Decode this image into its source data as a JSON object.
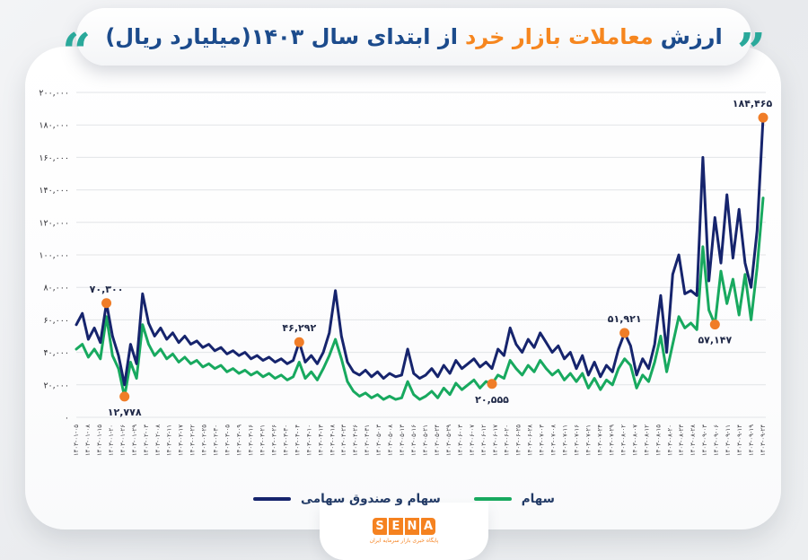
{
  "title": {
    "quote_left": "“",
    "quote_right": "”",
    "lead": "ارزش",
    "highlight": "معاملات بازار خرد",
    "tail": "از ابتدای سال ۱۴۰۳(میلیارد ریال)"
  },
  "colors": {
    "title_blue": "#1c4b8c",
    "title_orange": "#f6861f",
    "quote_teal": "#2aa99b",
    "navy_series": "#16246d",
    "green_series": "#18a95f",
    "annotation_dot": "#f07d28",
    "annotation_text": "#1f2847",
    "gridline": "#e2e4e7",
    "logo_orange": "#f58220"
  },
  "chart_data": {
    "type": "line",
    "title": "ارزش معاملات بازار خرد از ابتدای سال ۱۴۰۳(میلیارد ریال)",
    "unit": "میلیارد ریال",
    "ylim": [
      0,
      200000
    ],
    "grid": true,
    "legend_position": "bottom",
    "y_ticks": [
      {
        "label": "۲۰۰,۰۰۰",
        "value": 200000
      },
      {
        "label": "۱۸۰,۰۰۰",
        "value": 180000
      },
      {
        "label": "۱۶۰,۰۰۰",
        "value": 160000
      },
      {
        "label": "۱۴۰,۰۰۰",
        "value": 140000
      },
      {
        "label": "۱۲۰,۰۰۰",
        "value": 120000
      },
      {
        "label": "۱۰۰,۰۰۰",
        "value": 100000
      },
      {
        "label": "۸۰,۰۰۰",
        "value": 80000
      },
      {
        "label": "۶۰,۰۰۰",
        "value": 60000
      },
      {
        "label": "۴۰,۰۰۰",
        "value": 40000
      },
      {
        "label": "۲۰,۰۰۰",
        "value": 20000
      },
      {
        "label": "۰",
        "value": 0
      }
    ],
    "x_labels": [
      "۱۴۰۳-۰۱-۰۵",
      "۱۴۰۳-۰۱-۰۸",
      "۱۴۰۳-۰۱-۱۵",
      "۱۴۰۳-۰۱-۲۰",
      "۱۴۰۳-۰۱-۲۶",
      "۱۴۰۳-۰۱-۲۹",
      "۱۴۰۳-۰۲-۰۳",
      "۱۴۰۳-۰۲-۰۸",
      "۱۴۰۳-۰۲-۱۱",
      "۱۴۰۳-۰۲-۱۷",
      "۱۴۰۳-۰۲-۲۲",
      "۱۴۰۳-۰۲-۲۵",
      "۱۴۰۳-۰۲-۳۰",
      "۱۴۰۳-۰۳-۰۵",
      "۱۴۰۳-۰۳-۰۹",
      "۱۴۰۳-۰۳-۱۶",
      "۱۴۰۳-۰۳-۲۱",
      "۱۴۰۳-۰۳-۲۶",
      "۱۴۰۳-۰۳-۳۰",
      "۱۴۰۳-۰۴-۰۴",
      "۱۴۰۳-۰۴-۱۰",
      "۱۴۰۳-۰۴-۱۳",
      "۱۴۰۳-۰۴-۱۸",
      "۱۴۰۳-۰۴-۲۳",
      "۱۴۰۳-۰۴-۲۶",
      "۱۴۰۳-۰۴-۳۱",
      "۱۴۰۳-۰۵-۰۳",
      "۱۴۰۳-۰۵-۰۸",
      "۱۴۰۳-۰۵-۱۳",
      "۱۴۰۳-۰۵-۱۶",
      "۱۴۰۳-۰۵-۲۱",
      "۱۴۰۳-۰۵-۲۴",
      "۱۴۰۳-۰۵-۲۹",
      "۱۴۰۳-۰۶-۰۳",
      "۱۴۰۳-۰۶-۰۷",
      "۱۴۰۳-۰۶-۱۲",
      "۱۴۰۳-۰۶-۱۷",
      "۱۴۰۳-۰۶-۲۰",
      "۱۴۰۳-۰۶-۲۵",
      "۱۴۰۳-۰۶-۲۸",
      "۱۴۰۳-۰۷-۰۳",
      "۱۴۰۳-۰۷-۰۸",
      "۱۴۰۳-۰۷-۱۱",
      "۱۴۰۳-۰۷-۱۶",
      "۱۴۰۳-۰۷-۲۱",
      "۱۴۰۳-۰۷-۲۴",
      "۱۴۰۳-۰۷-۲۹",
      "۱۴۰۳-۰۸-۰۲",
      "۱۴۰۳-۰۸-۰۷",
      "۱۴۰۳-۰۸-۱۲",
      "۱۴۰۳-۰۸-۱۵",
      "۱۴۰۳-۰۸-۲۰",
      "۱۴۰۳-۰۸-۲۳",
      "۱۴۰۳-۰۸-۲۸",
      "۱۴۰۳-۰۹-۰۳",
      "۱۴۰۳-۰۹-۰۶",
      "۱۴۰۳-۰۹-۱۱",
      "۱۴۰۳-۰۹-۱۴",
      "۱۴۰۳-۰۹-۱۹",
      "۱۴۰۳-۰۹-۲۴"
    ],
    "series": [
      {
        "name": "سهام و صندوق سهامی",
        "color": "#16246d",
        "values": [
          57000,
          64000,
          48000,
          55000,
          46000,
          70300,
          50000,
          38000,
          20000,
          45000,
          33000,
          76000,
          58000,
          50000,
          55000,
          48000,
          52000,
          46000,
          50000,
          45000,
          47000,
          43000,
          45000,
          41000,
          43000,
          39000,
          41000,
          38000,
          40000,
          36000,
          38000,
          35000,
          37000,
          34000,
          36000,
          33000,
          35000,
          46292,
          34000,
          38000,
          33000,
          40000,
          52000,
          78000,
          50000,
          34000,
          28000,
          26000,
          29000,
          25000,
          28000,
          24000,
          27000,
          25000,
          26000,
          42000,
          27000,
          24000,
          26000,
          30000,
          25000,
          32000,
          27000,
          35000,
          30000,
          33000,
          36000,
          31000,
          34000,
          30000,
          42000,
          38000,
          55000,
          45000,
          40000,
          48000,
          43000,
          52000,
          46000,
          40000,
          44000,
          36000,
          40000,
          30000,
          38000,
          26000,
          34000,
          25000,
          32000,
          28000,
          42000,
          51921,
          44000,
          26000,
          36000,
          30000,
          45000,
          75000,
          40000,
          88000,
          100000,
          76000,
          78000,
          75000,
          160000,
          84000,
          123000,
          95000,
          137000,
          98000,
          128000,
          95000,
          80000,
          115000,
          184465
        ]
      },
      {
        "name": "سهام",
        "color": "#18a95f",
        "values": [
          42000,
          45000,
          37000,
          42000,
          36000,
          62000,
          38000,
          30000,
          12778,
          34000,
          24000,
          57000,
          45000,
          38000,
          42000,
          36000,
          39000,
          34000,
          37000,
          33000,
          35000,
          31000,
          33000,
          30000,
          32000,
          28000,
          30000,
          27000,
          29000,
          26000,
          28000,
          25000,
          27000,
          24000,
          26000,
          23000,
          25000,
          34000,
          24000,
          28000,
          23000,
          30000,
          38000,
          48000,
          36000,
          22000,
          16000,
          13000,
          15000,
          12000,
          14000,
          11000,
          13000,
          11000,
          12000,
          22000,
          14000,
          11000,
          13000,
          16000,
          12000,
          18000,
          14000,
          21000,
          17000,
          20000,
          23000,
          18000,
          22000,
          20555,
          26000,
          24000,
          35000,
          30000,
          26000,
          32000,
          28000,
          35000,
          30000,
          26000,
          29000,
          23000,
          27000,
          22000,
          27000,
          18000,
          24000,
          17000,
          23000,
          20000,
          30000,
          36000,
          32000,
          18000,
          26000,
          22000,
          34000,
          50000,
          28000,
          45000,
          62000,
          55000,
          58000,
          54000,
          105000,
          66000,
          57147,
          90000,
          70000,
          85000,
          63000,
          88000,
          60000,
          92000,
          135000
        ]
      }
    ],
    "annotations": [
      {
        "label": "۷۰,۳۰۰",
        "value": 70300,
        "series": 0,
        "index": 5,
        "side": "above"
      },
      {
        "label": "۱۲,۷۷۸",
        "value": 12778,
        "series": 1,
        "index": 8,
        "side": "below"
      },
      {
        "label": "۴۶,۲۹۲",
        "value": 46292,
        "series": 0,
        "index": 37,
        "side": "above"
      },
      {
        "label": "۲۰,۵۵۵",
        "value": 20555,
        "series": 1,
        "index": 69,
        "side": "below"
      },
      {
        "label": "۵۱,۹۲۱",
        "value": 51921,
        "series": 0,
        "index": 91,
        "side": "above"
      },
      {
        "label": "۵۷,۱۴۷",
        "value": 57147,
        "series": 1,
        "index": 106,
        "side": "below"
      },
      {
        "label": "۱۸۴,۴۶۵",
        "value": 184465,
        "series": 0,
        "index": 114,
        "side": "above"
      }
    ]
  },
  "legend": {
    "funds_label": "سهام و صندوق سهامی",
    "stocks_label": "سهام"
  },
  "footer": {
    "logo_letters": [
      "S",
      "E",
      "N",
      "A"
    ],
    "logo_subtitle": "پایگاه خبری بازار سرمایه ایران"
  }
}
